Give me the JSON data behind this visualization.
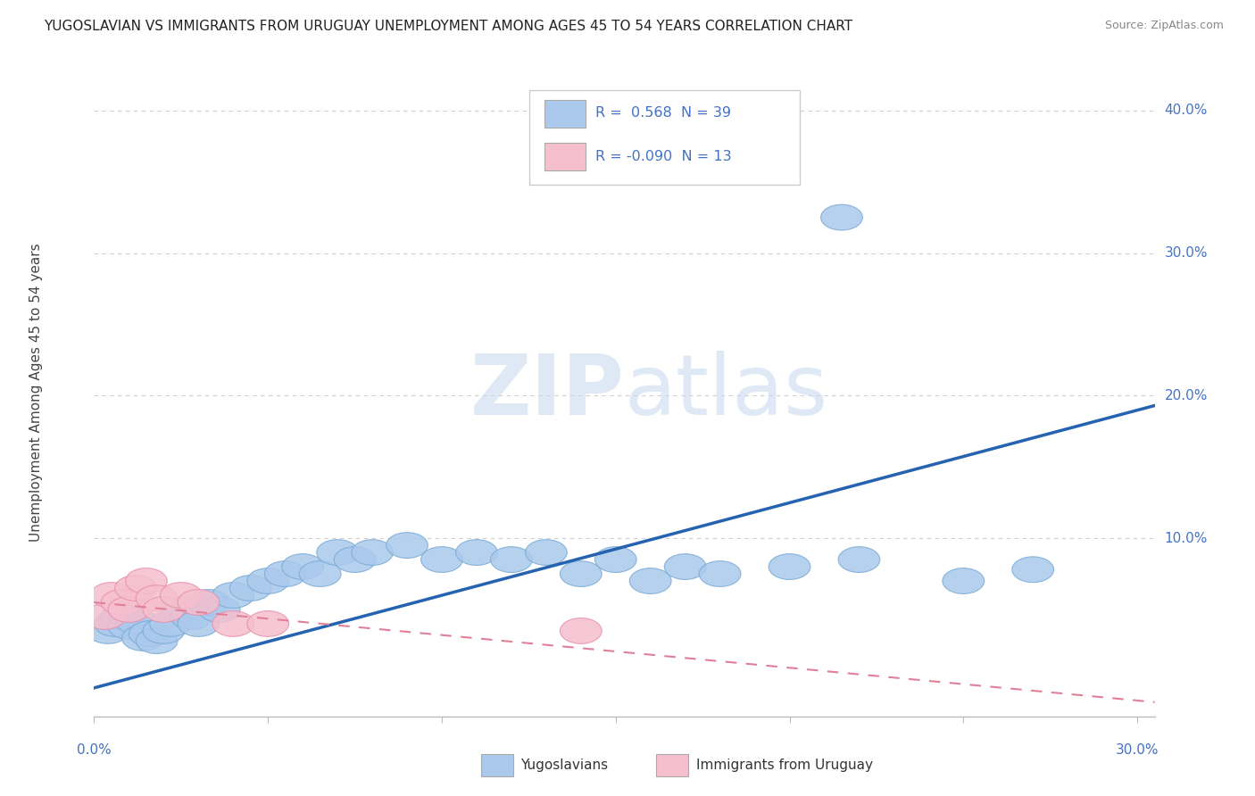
{
  "title": "YUGOSLAVIAN VS IMMIGRANTS FROM URUGUAY UNEMPLOYMENT AMONG AGES 45 TO 54 YEARS CORRELATION CHART",
  "source": "Source: ZipAtlas.com",
  "ylabel": "Unemployment Among Ages 45 to 54 years",
  "xlim": [
    0.0,
    0.305
  ],
  "ylim": [
    -0.025,
    0.43
  ],
  "r_blue": 0.568,
  "n_blue": 39,
  "r_pink": -0.09,
  "n_pink": 13,
  "blue_color": "#aac9ec",
  "blue_edge_color": "#7aabd6",
  "pink_color": "#f5bfce",
  "pink_edge_color": "#e890aa",
  "trendline_blue_color": "#2563b0",
  "trendline_pink_color": "#e08098",
  "background_color": "#ffffff",
  "grid_color": "#d0d0d0",
  "blue_x": [
    0.004,
    0.006,
    0.008,
    0.01,
    0.012,
    0.014,
    0.016,
    0.018,
    0.02,
    0.022,
    0.025,
    0.028,
    0.03,
    0.033,
    0.036,
    0.04,
    0.045,
    0.05,
    0.055,
    0.06,
    0.065,
    0.07,
    0.075,
    0.08,
    0.09,
    0.1,
    0.11,
    0.12,
    0.13,
    0.14,
    0.15,
    0.16,
    0.17,
    0.18,
    0.215,
    0.2,
    0.22,
    0.25,
    0.27
  ],
  "blue_y": [
    0.035,
    0.04,
    0.045,
    0.038,
    0.042,
    0.03,
    0.033,
    0.028,
    0.035,
    0.04,
    0.05,
    0.045,
    0.04,
    0.055,
    0.05,
    0.06,
    0.065,
    0.07,
    0.075,
    0.08,
    0.075,
    0.09,
    0.085,
    0.09,
    0.095,
    0.085,
    0.09,
    0.085,
    0.09,
    0.075,
    0.085,
    0.07,
    0.08,
    0.075,
    0.325,
    0.08,
    0.085,
    0.07,
    0.078
  ],
  "pink_x": [
    0.003,
    0.005,
    0.008,
    0.01,
    0.012,
    0.015,
    0.018,
    0.02,
    0.025,
    0.03,
    0.04,
    0.05,
    0.14
  ],
  "pink_y": [
    0.045,
    0.06,
    0.055,
    0.05,
    0.065,
    0.07,
    0.058,
    0.05,
    0.06,
    0.055,
    0.04,
    0.04,
    0.035
  ],
  "trend_blue_x0": 0.0,
  "trend_blue_y0": -0.005,
  "trend_blue_x1": 0.305,
  "trend_blue_y1": 0.193,
  "trend_pink_x0": 0.0,
  "trend_pink_y0": 0.055,
  "trend_pink_x1": 0.305,
  "trend_pink_y1": -0.015
}
